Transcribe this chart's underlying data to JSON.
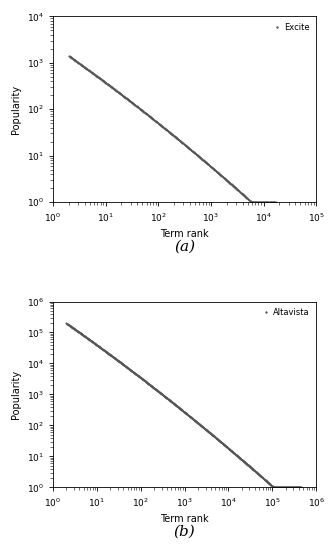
{
  "plot_a": {
    "label": "Excite",
    "x_start": 2,
    "x_end": 17000,
    "n_points": 600,
    "y_start": 1400,
    "y_end": 1,
    "xlim": [
      1,
      100000
    ],
    "ylim": [
      1,
      10000
    ],
    "xlabel": "Term rank",
    "ylabel": "Popularity",
    "marker": ".",
    "markersize": 1.5,
    "color": "#555555",
    "alpha": 1.0,
    "caption": "(a)",
    "curve_shape": "zipf_bent",
    "alpha_power": 1.15
  },
  "plot_b": {
    "label": "Altavista",
    "x_start": 2,
    "x_end": 450000,
    "n_points": 900,
    "y_start": 200000,
    "y_end": 1,
    "xlim": [
      1,
      1000000
    ],
    "ylim": [
      1,
      1000000
    ],
    "xlabel": "Term rank",
    "ylabel": "Popularity",
    "marker": ".",
    "markersize": 1.5,
    "color": "#555555",
    "alpha": 1.0,
    "caption": "(b)",
    "curve_shape": "zipf_bent",
    "alpha_power": 1.1
  }
}
